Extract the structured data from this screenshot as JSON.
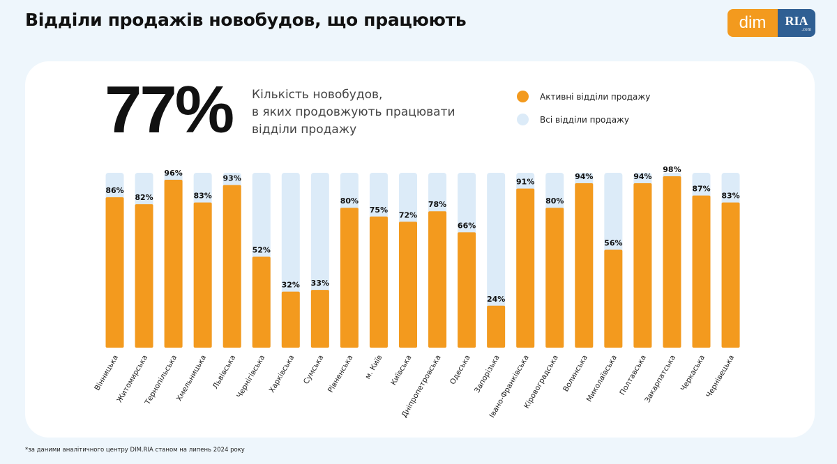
{
  "header": {
    "title": "Відділи продажів новобудов, що працюють"
  },
  "logo": {
    "left_text": "dim",
    "right_text": "RIA",
    "right_small": ".com"
  },
  "summary": {
    "big_number": "77%",
    "description_lines": [
      "Кількість новобудов,",
      "в яких продовжують працювати",
      "відділи продажу"
    ]
  },
  "footnote": "*за даними аналітичного центру DIM.RIA станом на липень 2024 року",
  "colors": {
    "active": "#f39a1e",
    "all": "#dcebf8",
    "accent_logo": "#2f5f93"
  },
  "chart_data": {
    "type": "bar",
    "categories": [
      "Вінницька",
      "Житомирська",
      "Тернопільська",
      "Хмельницька",
      "Львівська",
      "Чернігівська",
      "Харківська",
      "Сумська",
      "Рівненська",
      "м. Київ",
      "Київська",
      "Дніпропетровська",
      "Одеська",
      "Запорізька",
      "Івано-Франківська",
      "Кіровоградська",
      "Волинська",
      "Миколаївська",
      "Полтавська",
      "Закарпатська",
      "Черкаська",
      "Чернівецька"
    ],
    "series": [
      {
        "name": "Активні відділи продажу",
        "values": [
          86,
          82,
          96,
          83,
          93,
          52,
          32,
          33,
          80,
          75,
          72,
          78,
          66,
          24,
          91,
          80,
          94,
          56,
          94,
          98,
          87,
          83
        ]
      },
      {
        "name": "Всі відділи продажу",
        "values": [
          100,
          100,
          100,
          100,
          100,
          100,
          100,
          100,
          100,
          100,
          100,
          100,
          100,
          100,
          100,
          100,
          100,
          100,
          100,
          100,
          100,
          100
        ]
      }
    ],
    "data_labels": [
      "86%",
      "82%",
      "96%",
      "83%",
      "93%",
      "52%",
      "32%",
      "33%",
      "80%",
      "75%",
      "72%",
      "78%",
      "66%",
      "24%",
      "91%",
      "80%",
      "94%",
      "56%",
      "94%",
      "98%",
      "87%",
      "83%"
    ],
    "ylim": [
      0,
      100
    ],
    "legend_position": "top-right",
    "grid": false
  }
}
